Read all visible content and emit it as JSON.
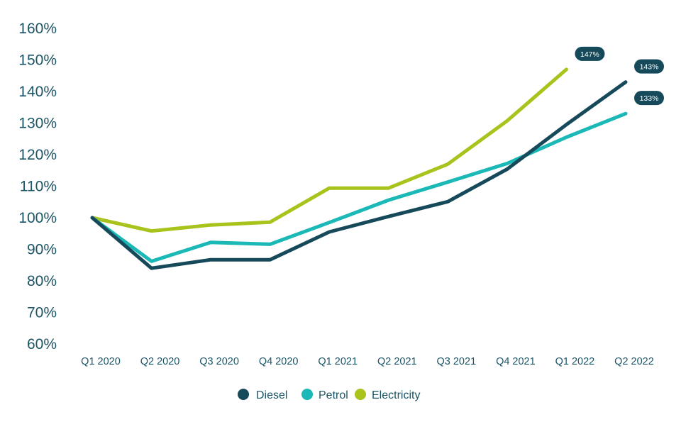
{
  "chart_data": {
    "type": "line",
    "title": "",
    "xlabel": "",
    "ylabel": "",
    "categories": [
      "Q1 2020",
      "Q2 2020",
      "Q3 2020",
      "Q4 2020",
      "Q1 2021",
      "Q2 2021",
      "Q3 2021",
      "Q4 2021",
      "Q1 2022",
      "Q2 2022"
    ],
    "yticks": [
      60,
      70,
      80,
      90,
      100,
      110,
      120,
      130,
      140,
      150,
      160
    ],
    "ytick_suffix": "%",
    "ylim": [
      60,
      160
    ],
    "grid": false,
    "legend_position": "bottom-center",
    "series": [
      {
        "name": "Diesel",
        "color": "#164a5b",
        "values": [
          100,
          84,
          86.7,
          86.7,
          95.5,
          100.4,
          105.1,
          115.4,
          129.5,
          143
        ]
      },
      {
        "name": "Petrol",
        "color": "#1ab8b6",
        "values": [
          100,
          86.2,
          92.2,
          91.6,
          98.5,
          105.6,
          111.3,
          117.2,
          125.5,
          133
        ]
      },
      {
        "name": "Electricity",
        "color": "#a9c31c",
        "values": [
          100,
          95.8,
          97.7,
          98.6,
          109.4,
          109.4,
          117,
          130.7,
          147,
          null
        ]
      }
    ],
    "annotations": [
      {
        "series": "Electricity",
        "category": "Q1 2022",
        "label": "147%"
      },
      {
        "series": "Diesel",
        "category": "Q2 2022",
        "label": "143%"
      },
      {
        "series": "Petrol",
        "category": "Q2 2022",
        "label": "133%"
      }
    ]
  }
}
